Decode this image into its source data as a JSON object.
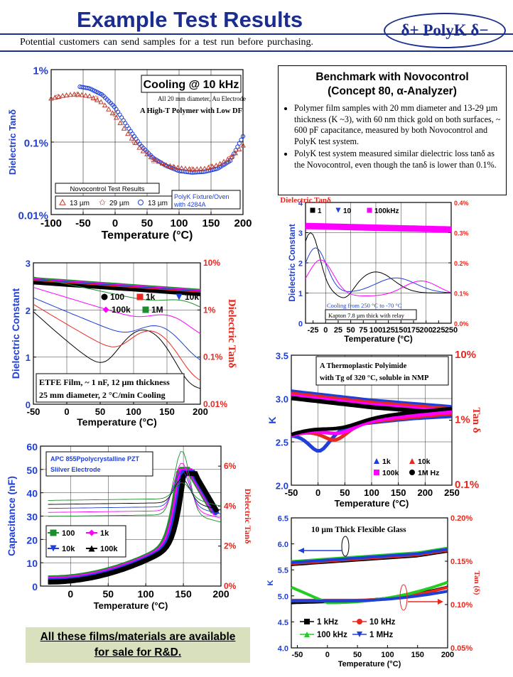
{
  "header": {
    "title": "Example Test Results",
    "subtitle": "Potential customers can send samples for a test run before purchasing.",
    "logo": "δ+ PolyK δ−"
  },
  "benchmark": {
    "title1": "Benchmark with Novocontrol",
    "title2": "(Concept 80, α-Analyzer)",
    "bullet1": "Polymer film samples with 20 mm diameter and 13-29 µm thickness (K ~3), with 60 nm thick gold on both surfaces, ~ 600 pF capacitance, measured by both Novocontrol and PolyK test system.",
    "bullet2": "PolyK test system measured similar dielectric loss tanδ as the Novocontrol, even though the tanδ is lower than 0.1%."
  },
  "footer": {
    "line1": "All these films/materials are available",
    "line2": "for sale for R&D."
  },
  "chart_data": [
    {
      "type": "scatter",
      "title": "Cooling @ 10 kHz",
      "annotation1": "All 20 mm diameter, Au Electrode",
      "annotation2": "A High-T Polymer with Low DF",
      "xlabel": "Temperature (°C)",
      "ylabel": "Dielectric Tanδ",
      "xlim": [
        -100,
        200
      ],
      "ylim": [
        0.01,
        1
      ],
      "yscale": "log",
      "xticks": [
        "-100",
        "-50",
        "0",
        "50",
        "100",
        "150",
        "200"
      ],
      "yticks": [
        "0.01%",
        "0.1%",
        "1%"
      ],
      "legend_title": "Novocontrol Test Results",
      "legend2": "PolyK Fixture/Oven with 4284A",
      "series": [
        {
          "name": "13 µm",
          "marker": "triangle",
          "color": "#c0392b",
          "x": [
            -100,
            -80,
            -60,
            -40,
            -20,
            0,
            20,
            40,
            60,
            80,
            100,
            120,
            140,
            160,
            180,
            200
          ],
          "y": [
            0.4,
            0.44,
            0.46,
            0.43,
            0.35,
            0.23,
            0.13,
            0.08,
            0.058,
            0.048,
            0.044,
            0.042,
            0.043,
            0.048,
            0.06,
            0.09
          ]
        },
        {
          "name": "29 µm",
          "marker": "star",
          "color": "#c0392b",
          "x": [
            -90,
            -60,
            -30,
            0,
            30,
            60,
            90,
            120,
            150,
            180
          ],
          "y": [
            0.42,
            0.45,
            0.4,
            0.24,
            0.1,
            0.055,
            0.045,
            0.042,
            0.046,
            0.06
          ]
        },
        {
          "name": "13 µm",
          "marker": "circle",
          "color": "#1f3fd6",
          "x": [
            -55,
            -40,
            -20,
            0,
            20,
            40,
            60,
            80,
            100,
            120,
            140,
            160,
            180,
            200
          ],
          "y": [
            0.58,
            0.55,
            0.45,
            0.3,
            0.16,
            0.09,
            0.06,
            0.047,
            0.04,
            0.038,
            0.039,
            0.043,
            0.055,
            0.12
          ]
        }
      ]
    },
    {
      "type": "line",
      "ylabel": "Dielectric Constant",
      "y2label": "Dielectric Tanδ",
      "xlabel": "Temperature (°C)",
      "xlim": [
        -40,
        250
      ],
      "ylim": [
        0,
        4
      ],
      "y2lim": [
        0,
        0.4
      ],
      "xticks": [
        "-25",
        "0",
        "25",
        "50",
        "75",
        "100",
        "125",
        "150",
        "175",
        "200",
        "225",
        "250"
      ],
      "yticks": [
        "0",
        "1",
        "2",
        "3",
        "4"
      ],
      "y2ticks": [
        "0.0%",
        "0.1%",
        "0.2%",
        "0.3%",
        "0.4%"
      ],
      "annotation1": "Cooling from 250 °C to -70 °C",
      "annotation2": "Kapton 7.8 µm thick with relay",
      "series": [
        {
          "name": "1",
          "color": "#000000"
        },
        {
          "name": "10",
          "color": "#1f3fd6"
        },
        {
          "name": "100kHz",
          "color": "#ff00ff"
        }
      ]
    },
    {
      "type": "line",
      "ylabel": "Dielectric Constant",
      "y2label": "Dielectric Tanδ",
      "xlabel": "Temperature (°C)",
      "xlim": [
        -50,
        200
      ],
      "ylim": [
        0,
        3
      ],
      "y2lim": [
        0.01,
        10
      ],
      "y2scale": "log",
      "xticks": [
        "-50",
        "0",
        "50",
        "100",
        "150",
        "200"
      ],
      "yticks": [
        "0",
        "1",
        "2",
        "3"
      ],
      "y2ticks": [
        "0.01%",
        "0.1%",
        "1%",
        "10%"
      ],
      "annotation1": "ETFE Film, ~ 1 nF, 12 µm thickness",
      "annotation2": "25 mm diameter, 2 °C/min Cooling",
      "series": [
        {
          "name": "100",
          "color": "#000000"
        },
        {
          "name": "1k",
          "color": "#e8281f"
        },
        {
          "name": "10k",
          "color": "#1f3fd6"
        },
        {
          "name": "100k",
          "color": "#ff00ff"
        },
        {
          "name": "1M",
          "color": "#1a8f2b"
        }
      ]
    },
    {
      "type": "line",
      "ylabel": "K",
      "y2label": "Tan δ",
      "xlabel": "Temperature (°C)",
      "xlim": [
        -50,
        250
      ],
      "ylim": [
        2,
        3.5
      ],
      "y2lim": [
        0.1,
        10
      ],
      "y2scale": "log",
      "xticks": [
        "-50",
        "0",
        "50",
        "100",
        "150",
        "200",
        "250"
      ],
      "yticks": [
        "2.0",
        "2.5",
        "3.0",
        "3.5"
      ],
      "y2ticks": [
        "0.1%",
        "1%",
        "10%"
      ],
      "annotation1": "A Thermoplastic Polyimide",
      "annotation2": "with Tg of 320 °C, soluble in NMP",
      "series": [
        {
          "name": "1k",
          "color": "#1f3fd6"
        },
        {
          "name": "10k",
          "color": "#e8281f"
        },
        {
          "name": "100k",
          "color": "#ff00ff"
        },
        {
          "name": "1M Hz",
          "color": "#000000"
        }
      ]
    },
    {
      "type": "line",
      "annotation1": "APC 855Ppolycrystalline PZT",
      "annotation2": "Slilver Electrode",
      "ylabel": "Capacitance (nF)",
      "y2label": "Dielectric Tanδ",
      "xlabel": "Temperature (°C)",
      "xlim": [
        -40,
        200
      ],
      "ylim": [
        0,
        60
      ],
      "y2lim": [
        0,
        7
      ],
      "xticks": [
        "0",
        "50",
        "100",
        "150",
        "200"
      ],
      "yticks": [
        "0",
        "10",
        "20",
        "30",
        "40",
        "50",
        "60"
      ],
      "y2ticks": [
        "0%",
        "2%",
        "4%",
        "6%"
      ],
      "series": [
        {
          "name": "100",
          "color": "#1a8f2b"
        },
        {
          "name": "1k",
          "color": "#ff00ff"
        },
        {
          "name": "10k",
          "color": "#1f3fd6"
        },
        {
          "name": "100k",
          "color": "#000000"
        }
      ]
    },
    {
      "type": "line",
      "title": "10 µm Thick Flexible Glass",
      "ylabel": "K",
      "y2label": "Tan (δ)",
      "xlabel": "Temperature (°C)",
      "xlim": [
        -60,
        200
      ],
      "ylim": [
        4,
        6.5
      ],
      "y2lim": [
        0.05,
        0.2
      ],
      "xticks": [
        "-50",
        "0",
        "50",
        "100",
        "150",
        "200"
      ],
      "yticks": [
        "4.0",
        "4.5",
        "5.0",
        "5.5",
        "6.0",
        "6.5"
      ],
      "y2ticks": [
        "0.05%",
        "0.10%",
        "0.15%",
        "0.20%"
      ],
      "series": [
        {
          "name": "1 kHz",
          "color": "#000000"
        },
        {
          "name": "10 kHz",
          "color": "#e8281f"
        },
        {
          "name": "100 kHz",
          "color": "#22cc22"
        },
        {
          "name": "1 MHz",
          "color": "#1f3fd6"
        }
      ]
    }
  ]
}
